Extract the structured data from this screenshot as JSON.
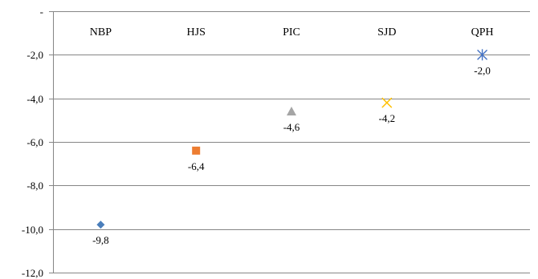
{
  "chart_data": {
    "type": "scatter",
    "categories": [
      "NBP",
      "HJS",
      "PIC",
      "SJD",
      "QPH"
    ],
    "series": [
      {
        "category": "NBP",
        "value": -9.8,
        "label": "-9,8",
        "marker": "diamond",
        "color": "#4a7ebb"
      },
      {
        "category": "HJS",
        "value": -6.4,
        "label": "-6,4",
        "marker": "square",
        "color": "#ed7d31"
      },
      {
        "category": "PIC",
        "value": -4.6,
        "label": "-4,6",
        "marker": "triangle",
        "color": "#a5a5a5"
      },
      {
        "category": "SJD",
        "value": -4.2,
        "label": "-4,2",
        "marker": "x",
        "color": "#ffc000"
      },
      {
        "category": "QPH",
        "value": -2.0,
        "label": "-2,0",
        "marker": "star",
        "color": "#4472c4"
      }
    ],
    "ylim": [
      -12,
      0
    ],
    "yticks": [
      {
        "value": 0,
        "label": "-"
      },
      {
        "value": -2,
        "label": "-2,0"
      },
      {
        "value": -4,
        "label": "-4,0"
      },
      {
        "value": -6,
        "label": "-6,0"
      },
      {
        "value": -8,
        "label": "-8,0"
      },
      {
        "value": -10,
        "label": "-10,0"
      },
      {
        "value": -12,
        "label": "-12,0"
      }
    ],
    "grid": true,
    "category_labels_position": "top",
    "colors": {
      "gridline": "#868686",
      "axis": "#868686"
    }
  }
}
